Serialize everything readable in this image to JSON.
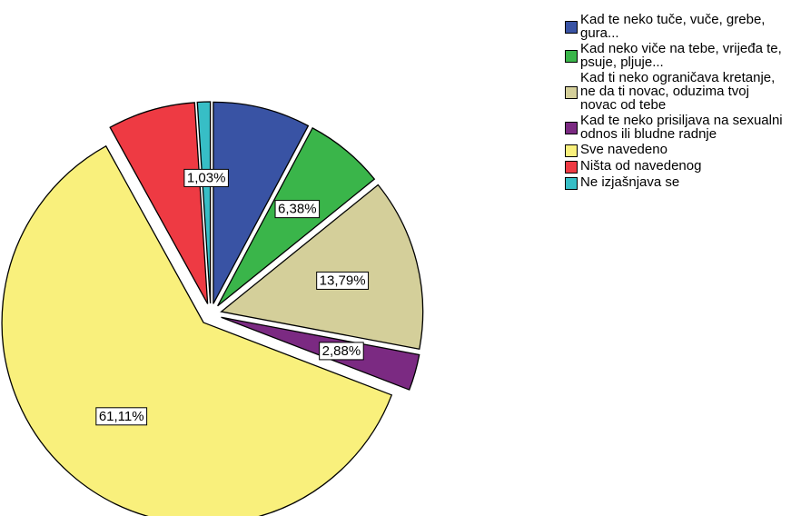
{
  "chart_data": {
    "type": "pie",
    "categories": [
      "Kad te neko tuče, vuče, grebe, gura...",
      "Kad neko viče na tebe, vrijeđa te, psuje, pljuje...",
      "Kad ti neko ograničava kretanje, ne da ti novac, oduzima tvoj novac od tebe",
      "Kad te neko prisiljava na sexualni odnos ili bludne radnje",
      "Sve navedeno",
      "Ništa od navedenog",
      "Ne izjašnjava se"
    ],
    "values": [
      7.8,
      6.38,
      13.79,
      2.88,
      61.11,
      7.01,
      1.03
    ],
    "value_labels": [
      null,
      "6,38%",
      "13,79%",
      "2,88%",
      "61,11%",
      null,
      "1,03%"
    ],
    "colors": [
      "#3953a4",
      "#3ab54a",
      "#d4cf9a",
      "#7b2a82",
      "#f9f07c",
      "#ee3a43",
      "#37bec6"
    ],
    "legend": "top-right"
  }
}
